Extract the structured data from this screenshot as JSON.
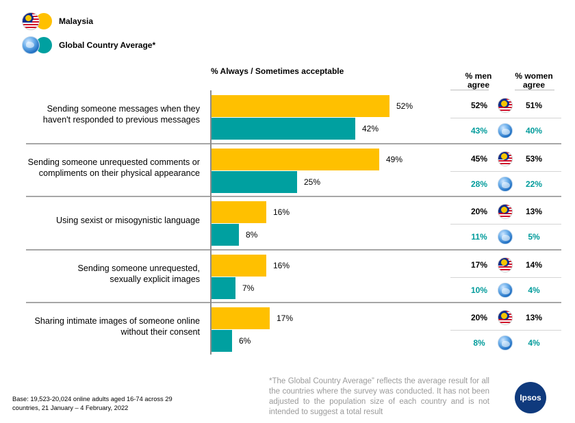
{
  "legend": [
    {
      "label": "Malaysia",
      "icon": "malaysia-flag-icon",
      "color": "#ffc000"
    },
    {
      "label": "Global Country Average*",
      "icon": "globe-icon",
      "color": "#009b9b"
    }
  ],
  "headers": {
    "chart": "% Always / Sometimes acceptable",
    "men": [
      "% men",
      "agree"
    ],
    "women": [
      "% women",
      "agree"
    ]
  },
  "colors": {
    "malaysia": "#ffc000",
    "global": "#00a0a0",
    "global_text": "#009b9b"
  },
  "chart_data": {
    "type": "bar",
    "orientation": "horizontal",
    "title": "% Always / Sometimes acceptable",
    "xlim": [
      0,
      100
    ],
    "categories": [
      [
        "Sending someone messages when they",
        "haven't responded to previous messages"
      ],
      [
        "Sending someone unrequested comments or",
        "compliments on their physical appearance"
      ],
      [
        "Using sexist or misogynistic language"
      ],
      [
        "Sending someone unrequested,",
        "sexually explicit images"
      ],
      [
        "Sharing intimate images of someone online",
        "without their consent"
      ]
    ],
    "series": [
      {
        "name": "Malaysia",
        "values": [
          52,
          49,
          16,
          16,
          17
        ],
        "labels": [
          "52%",
          "49%",
          "16%",
          "16%",
          "17%"
        ]
      },
      {
        "name": "Global Country Average*",
        "values": [
          42,
          25,
          8,
          7,
          6
        ],
        "labels": [
          "42%",
          "25%",
          "8%",
          "7%",
          "6%"
        ]
      }
    ],
    "gender_table": [
      {
        "malaysia_men": "52%",
        "malaysia_women": "51%",
        "global_men": "43%",
        "global_women": "40%"
      },
      {
        "malaysia_men": "45%",
        "malaysia_women": "53%",
        "global_men": "28%",
        "global_women": "22%"
      },
      {
        "malaysia_men": "20%",
        "malaysia_women": "13%",
        "global_men": "11%",
        "global_women": "5%"
      },
      {
        "malaysia_men": "17%",
        "malaysia_women": "14%",
        "global_men": "10%",
        "global_women": "4%"
      },
      {
        "malaysia_men": "20%",
        "malaysia_women": "13%",
        "global_men": "8%",
        "global_women": "4%"
      }
    ]
  },
  "footer": {
    "base": [
      "Base: 19,523-20,024 online adults aged 16-74 across 29",
      "countries, 21 January – 4 February, 2022"
    ],
    "note": "*The Global Country Average” reflects the average result for all the countries where the survey was conducted. It has not been adjusted to the population size of each country and is not intended to suggest a total result",
    "logo": "Ipsos"
  }
}
